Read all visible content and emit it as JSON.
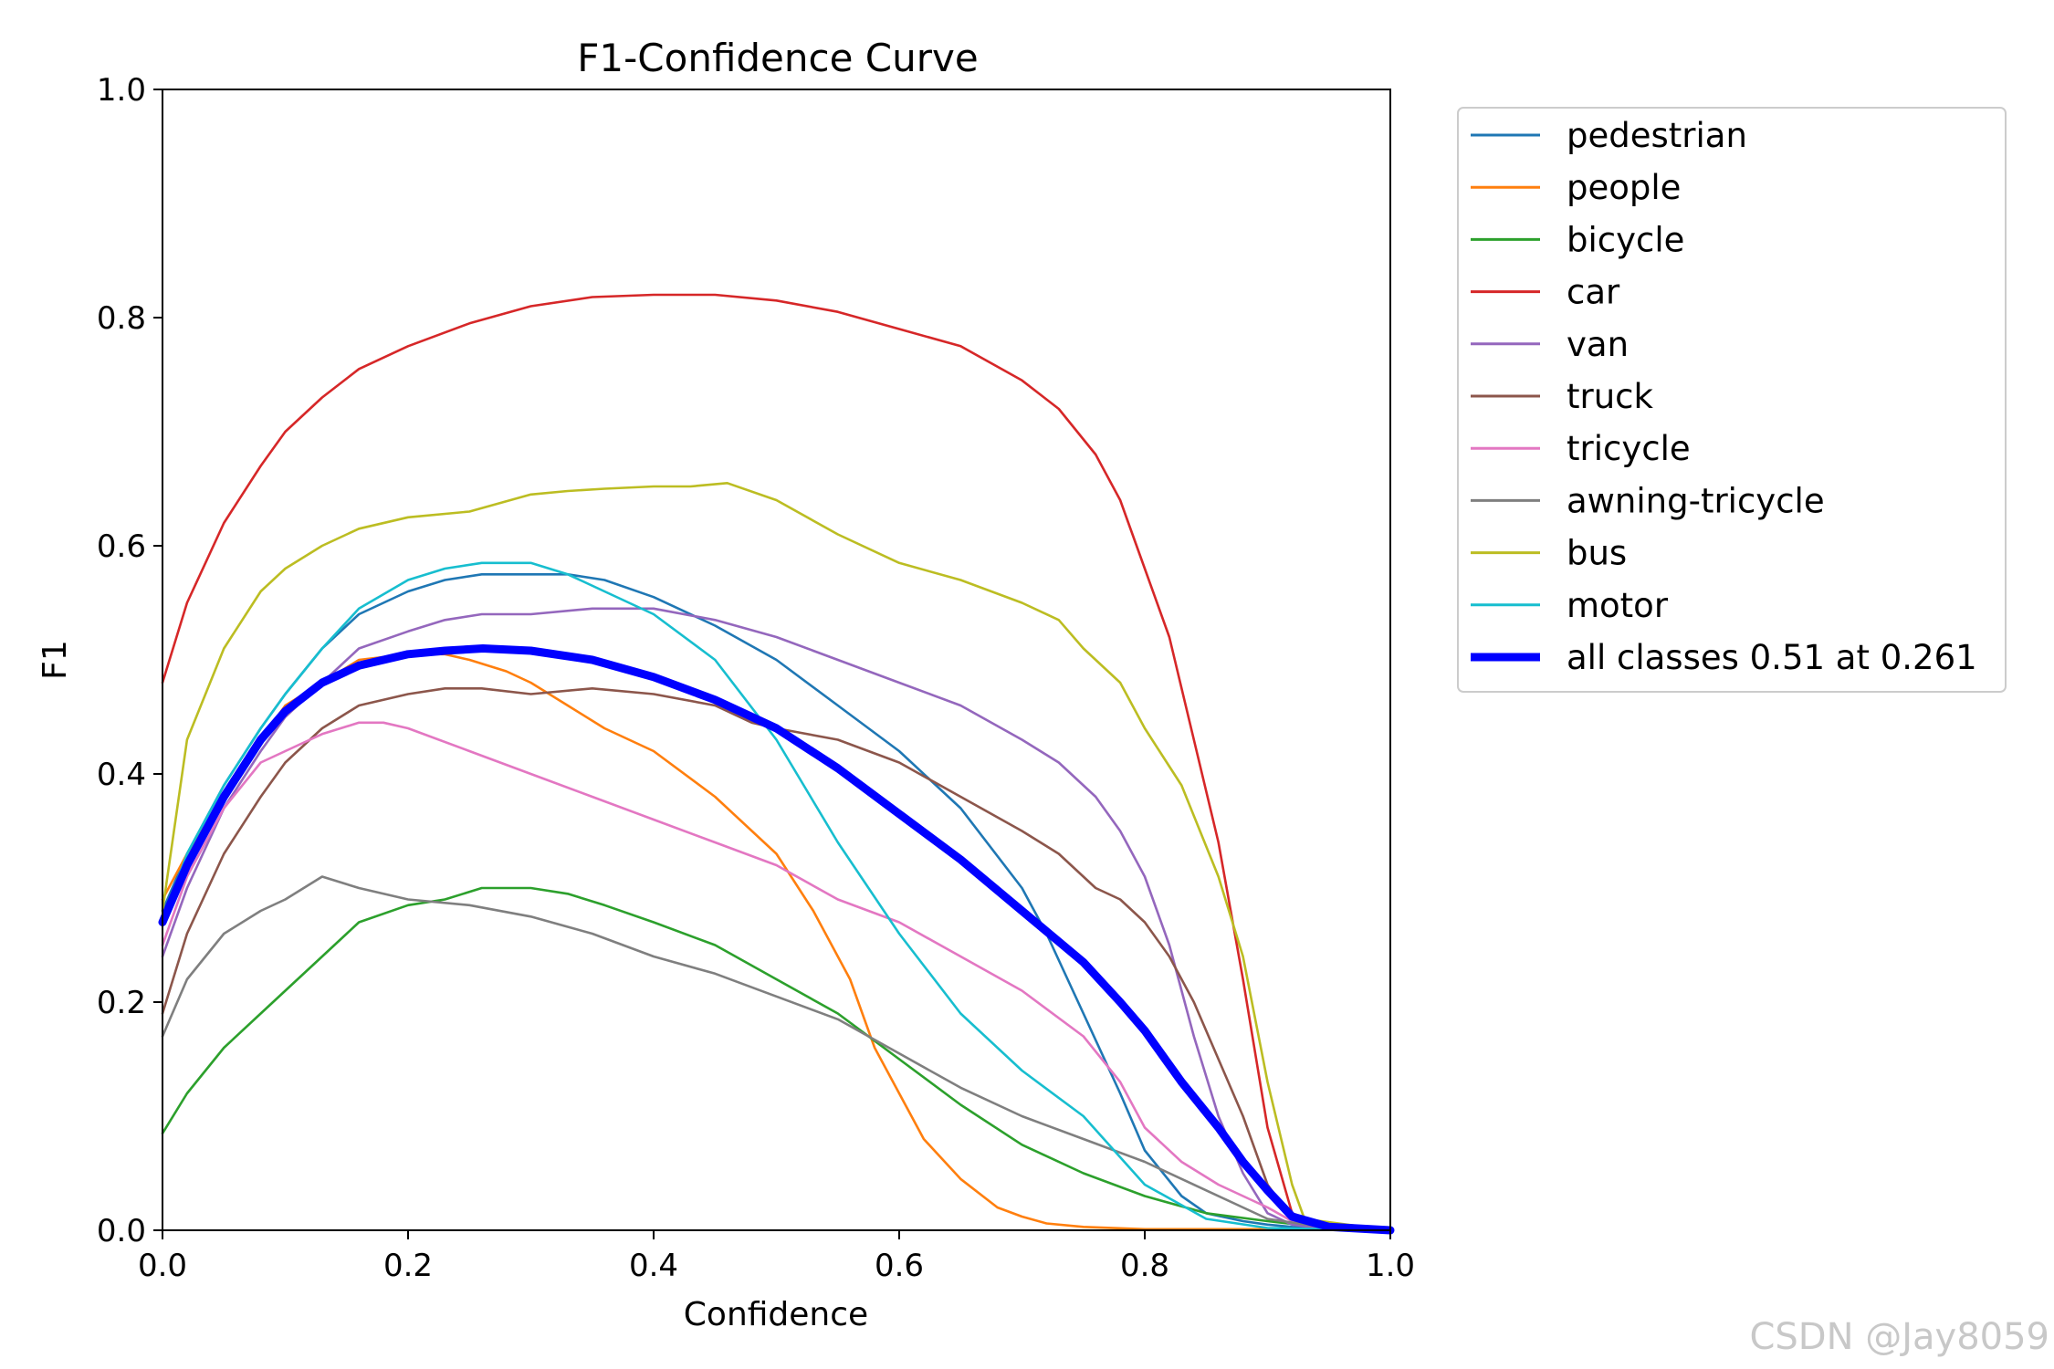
{
  "chart_data": {
    "type": "line",
    "title": "F1-Confidence Curve",
    "xlabel": "Confidence",
    "ylabel": "F1",
    "xlim": [
      0,
      1
    ],
    "ylim": [
      0,
      1
    ],
    "xticks": [
      "0.0",
      "0.2",
      "0.4",
      "0.6",
      "0.8",
      "1.0"
    ],
    "yticks": [
      "0.0",
      "0.2",
      "0.4",
      "0.6",
      "0.8",
      "1.0"
    ],
    "grid": false,
    "legend_position": "outside-top-right",
    "series": [
      {
        "name": "pedestrian",
        "color": "#1f77b4",
        "bold": false,
        "x": [
          0,
          0.02,
          0.05,
          0.08,
          0.1,
          0.13,
          0.16,
          0.2,
          0.23,
          0.26,
          0.3,
          0.33,
          0.36,
          0.4,
          0.45,
          0.5,
          0.55,
          0.6,
          0.65,
          0.7,
          0.72,
          0.75,
          0.78,
          0.8,
          0.83,
          0.85,
          0.88,
          0.9,
          0.92,
          0.95,
          1.0
        ],
        "y": [
          0.28,
          0.33,
          0.39,
          0.44,
          0.47,
          0.51,
          0.54,
          0.56,
          0.57,
          0.575,
          0.575,
          0.575,
          0.57,
          0.555,
          0.53,
          0.5,
          0.46,
          0.42,
          0.37,
          0.3,
          0.26,
          0.19,
          0.12,
          0.07,
          0.03,
          0.015,
          0.008,
          0.005,
          0.003,
          0.001,
          0.001
        ]
      },
      {
        "name": "people",
        "color": "#ff7f0e",
        "bold": false,
        "x": [
          0,
          0.02,
          0.05,
          0.08,
          0.1,
          0.13,
          0.16,
          0.2,
          0.23,
          0.25,
          0.28,
          0.3,
          0.33,
          0.36,
          0.4,
          0.45,
          0.5,
          0.53,
          0.56,
          0.58,
          0.6,
          0.62,
          0.65,
          0.68,
          0.7,
          0.72,
          0.75,
          0.8,
          0.85,
          0.9,
          1.0
        ],
        "y": [
          0.29,
          0.33,
          0.38,
          0.43,
          0.46,
          0.48,
          0.5,
          0.505,
          0.505,
          0.5,
          0.49,
          0.48,
          0.46,
          0.44,
          0.42,
          0.38,
          0.33,
          0.28,
          0.22,
          0.16,
          0.12,
          0.08,
          0.045,
          0.02,
          0.012,
          0.006,
          0.003,
          0.001,
          0.001,
          0.001,
          0.0
        ]
      },
      {
        "name": "bicycle",
        "color": "#2ca02c",
        "bold": false,
        "x": [
          0,
          0.02,
          0.05,
          0.08,
          0.1,
          0.13,
          0.16,
          0.2,
          0.23,
          0.26,
          0.3,
          0.33,
          0.36,
          0.4,
          0.45,
          0.5,
          0.55,
          0.6,
          0.65,
          0.7,
          0.75,
          0.8,
          0.85,
          0.9,
          0.95,
          1.0
        ],
        "y": [
          0.085,
          0.12,
          0.16,
          0.19,
          0.21,
          0.24,
          0.27,
          0.285,
          0.29,
          0.3,
          0.3,
          0.295,
          0.285,
          0.27,
          0.25,
          0.22,
          0.19,
          0.15,
          0.11,
          0.075,
          0.05,
          0.03,
          0.015,
          0.008,
          0.002,
          0.001
        ]
      },
      {
        "name": "car",
        "color": "#d62728",
        "bold": false,
        "x": [
          0,
          0.02,
          0.05,
          0.08,
          0.1,
          0.13,
          0.16,
          0.2,
          0.25,
          0.3,
          0.35,
          0.4,
          0.45,
          0.5,
          0.55,
          0.6,
          0.65,
          0.7,
          0.73,
          0.76,
          0.78,
          0.8,
          0.82,
          0.84,
          0.86,
          0.88,
          0.9,
          0.92,
          0.95,
          1.0
        ],
        "y": [
          0.48,
          0.55,
          0.62,
          0.67,
          0.7,
          0.73,
          0.755,
          0.775,
          0.795,
          0.81,
          0.818,
          0.82,
          0.82,
          0.815,
          0.805,
          0.79,
          0.775,
          0.745,
          0.72,
          0.68,
          0.64,
          0.58,
          0.52,
          0.43,
          0.34,
          0.22,
          0.09,
          0.015,
          0.003,
          0.001
        ]
      },
      {
        "name": "van",
        "color": "#9467bd",
        "bold": false,
        "x": [
          0,
          0.02,
          0.05,
          0.08,
          0.1,
          0.13,
          0.16,
          0.2,
          0.23,
          0.26,
          0.3,
          0.35,
          0.4,
          0.45,
          0.5,
          0.55,
          0.6,
          0.65,
          0.7,
          0.73,
          0.76,
          0.78,
          0.8,
          0.82,
          0.84,
          0.86,
          0.88,
          0.9,
          0.92,
          0.95,
          1.0
        ],
        "y": [
          0.24,
          0.3,
          0.37,
          0.42,
          0.45,
          0.48,
          0.51,
          0.525,
          0.535,
          0.54,
          0.54,
          0.545,
          0.545,
          0.535,
          0.52,
          0.5,
          0.48,
          0.46,
          0.43,
          0.41,
          0.38,
          0.35,
          0.31,
          0.25,
          0.17,
          0.1,
          0.05,
          0.015,
          0.005,
          0.001,
          0.0
        ]
      },
      {
        "name": "truck",
        "color": "#8c564b",
        "bold": false,
        "x": [
          0,
          0.02,
          0.05,
          0.08,
          0.1,
          0.13,
          0.16,
          0.2,
          0.23,
          0.26,
          0.3,
          0.35,
          0.4,
          0.45,
          0.48,
          0.5,
          0.55,
          0.6,
          0.65,
          0.7,
          0.73,
          0.76,
          0.78,
          0.8,
          0.82,
          0.84,
          0.86,
          0.88,
          0.9,
          0.92,
          1.0
        ],
        "y": [
          0.19,
          0.26,
          0.33,
          0.38,
          0.41,
          0.44,
          0.46,
          0.47,
          0.475,
          0.475,
          0.47,
          0.475,
          0.47,
          0.46,
          0.445,
          0.44,
          0.43,
          0.41,
          0.38,
          0.35,
          0.33,
          0.3,
          0.29,
          0.27,
          0.24,
          0.2,
          0.15,
          0.1,
          0.04,
          0.01,
          0.0
        ]
      },
      {
        "name": "tricycle",
        "color": "#e377c2",
        "bold": false,
        "x": [
          0,
          0.02,
          0.05,
          0.08,
          0.1,
          0.13,
          0.16,
          0.18,
          0.2,
          0.25,
          0.3,
          0.35,
          0.4,
          0.45,
          0.5,
          0.55,
          0.6,
          0.65,
          0.7,
          0.75,
          0.78,
          0.8,
          0.83,
          0.86,
          0.88,
          0.9,
          0.92,
          0.95,
          1.0
        ],
        "y": [
          0.25,
          0.31,
          0.37,
          0.41,
          0.42,
          0.435,
          0.445,
          0.445,
          0.44,
          0.42,
          0.4,
          0.38,
          0.36,
          0.34,
          0.32,
          0.29,
          0.27,
          0.24,
          0.21,
          0.17,
          0.13,
          0.09,
          0.06,
          0.04,
          0.03,
          0.02,
          0.008,
          0.002,
          0.0
        ]
      },
      {
        "name": "awning-tricycle",
        "color": "#7f7f7f",
        "bold": false,
        "x": [
          0,
          0.02,
          0.05,
          0.08,
          0.1,
          0.13,
          0.16,
          0.2,
          0.25,
          0.3,
          0.35,
          0.4,
          0.45,
          0.5,
          0.55,
          0.6,
          0.65,
          0.7,
          0.75,
          0.8,
          0.85,
          0.88,
          0.9,
          0.95,
          1.0
        ],
        "y": [
          0.17,
          0.22,
          0.26,
          0.28,
          0.29,
          0.31,
          0.3,
          0.29,
          0.285,
          0.275,
          0.26,
          0.24,
          0.225,
          0.205,
          0.185,
          0.155,
          0.125,
          0.1,
          0.08,
          0.06,
          0.035,
          0.02,
          0.01,
          0.002,
          0.0
        ]
      },
      {
        "name": "bus",
        "color": "#bcbd22",
        "bold": false,
        "x": [
          0,
          0.02,
          0.05,
          0.08,
          0.1,
          0.13,
          0.16,
          0.2,
          0.25,
          0.3,
          0.33,
          0.36,
          0.4,
          0.43,
          0.46,
          0.5,
          0.55,
          0.6,
          0.65,
          0.7,
          0.73,
          0.75,
          0.78,
          0.8,
          0.83,
          0.86,
          0.88,
          0.9,
          0.92,
          0.93,
          1.0
        ],
        "y": [
          0.28,
          0.43,
          0.51,
          0.56,
          0.58,
          0.6,
          0.615,
          0.625,
          0.63,
          0.645,
          0.648,
          0.65,
          0.652,
          0.652,
          0.655,
          0.64,
          0.61,
          0.585,
          0.57,
          0.55,
          0.535,
          0.51,
          0.48,
          0.44,
          0.39,
          0.31,
          0.24,
          0.13,
          0.04,
          0.01,
          0.0
        ]
      },
      {
        "name": "motor",
        "color": "#17becf",
        "bold": false,
        "x": [
          0,
          0.02,
          0.05,
          0.08,
          0.1,
          0.13,
          0.16,
          0.2,
          0.23,
          0.26,
          0.3,
          0.33,
          0.36,
          0.4,
          0.45,
          0.5,
          0.55,
          0.6,
          0.65,
          0.7,
          0.75,
          0.8,
          0.85,
          0.9,
          0.95,
          1.0
        ],
        "y": [
          0.27,
          0.33,
          0.39,
          0.44,
          0.47,
          0.51,
          0.545,
          0.57,
          0.58,
          0.585,
          0.585,
          0.575,
          0.56,
          0.54,
          0.5,
          0.43,
          0.34,
          0.26,
          0.19,
          0.14,
          0.1,
          0.04,
          0.01,
          0.002,
          0.001,
          0.0
        ]
      },
      {
        "name": "all classes 0.51 at 0.261",
        "color": "#0000ff",
        "bold": true,
        "x": [
          0,
          0.02,
          0.05,
          0.08,
          0.1,
          0.13,
          0.16,
          0.2,
          0.23,
          0.261,
          0.3,
          0.35,
          0.4,
          0.45,
          0.5,
          0.55,
          0.6,
          0.65,
          0.7,
          0.75,
          0.78,
          0.8,
          0.83,
          0.86,
          0.88,
          0.9,
          0.92,
          0.95,
          1.0
        ],
        "y": [
          0.27,
          0.32,
          0.38,
          0.43,
          0.455,
          0.48,
          0.495,
          0.505,
          0.508,
          0.51,
          0.508,
          0.5,
          0.485,
          0.465,
          0.44,
          0.405,
          0.365,
          0.325,
          0.28,
          0.235,
          0.2,
          0.175,
          0.13,
          0.09,
          0.06,
          0.035,
          0.012,
          0.003,
          0.0
        ]
      }
    ]
  },
  "watermark": "CSDN @Jay8059"
}
